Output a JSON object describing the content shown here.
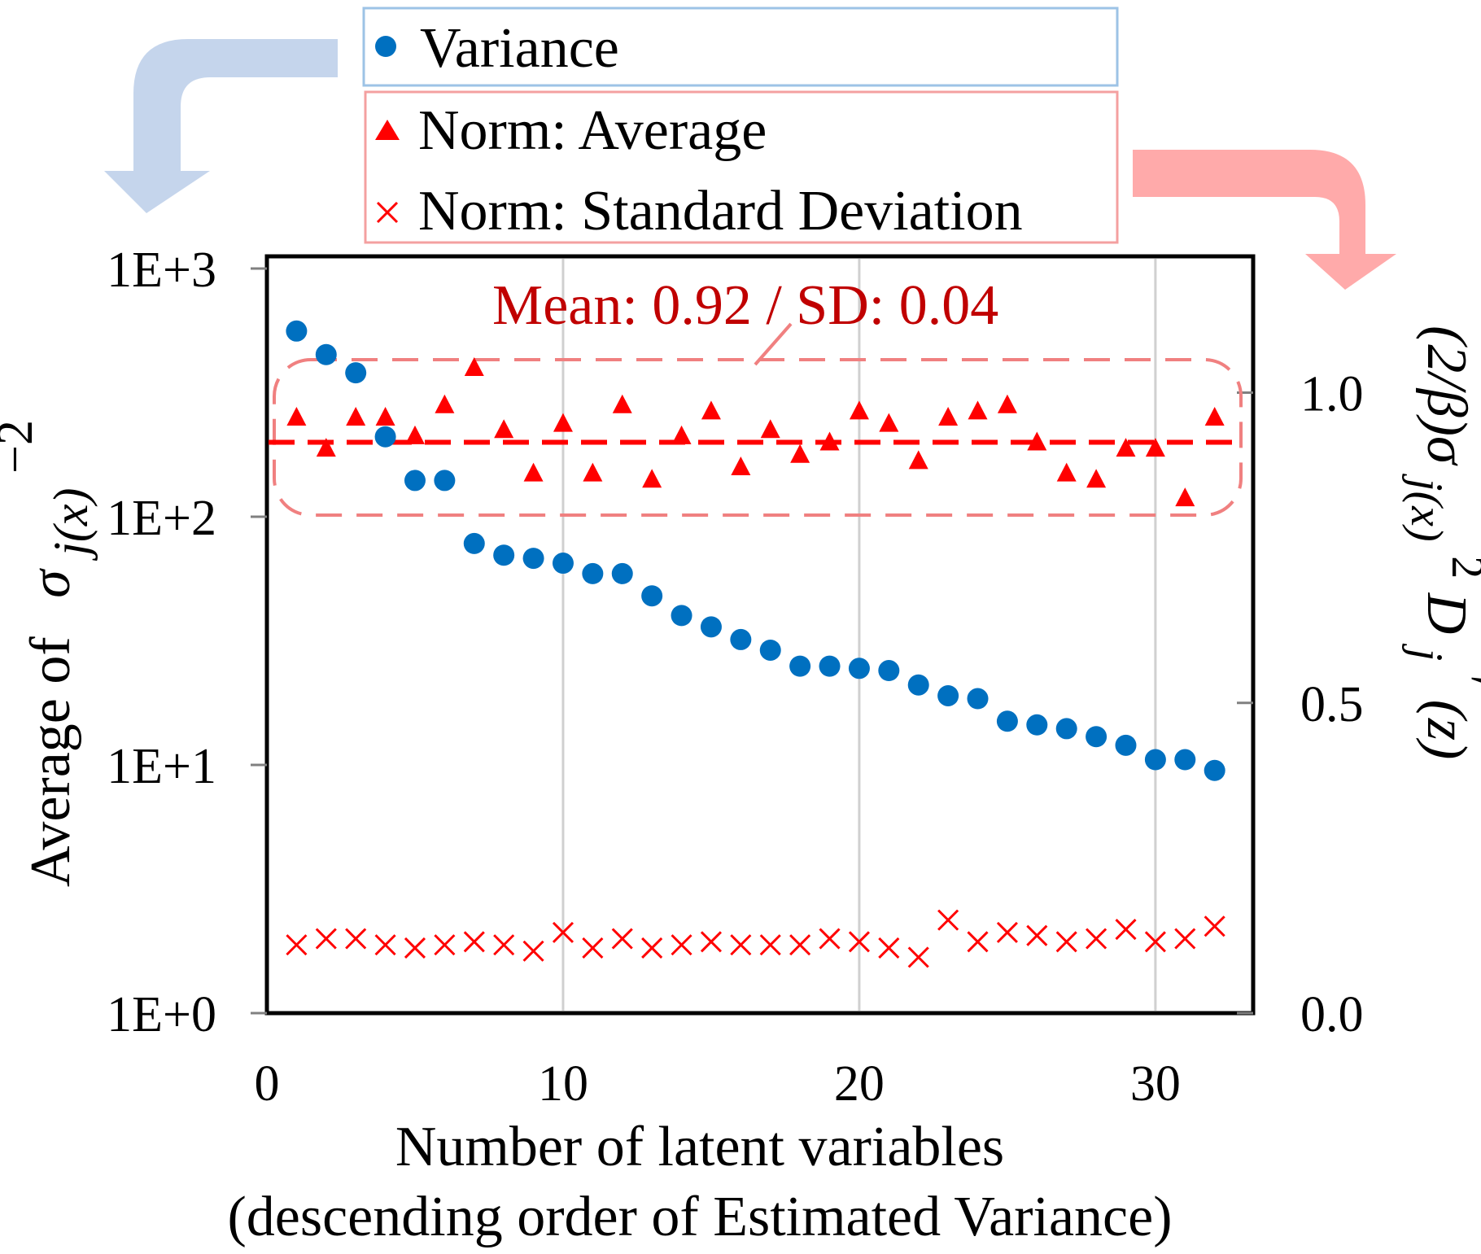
{
  "chart_data": {
    "type": "scatter",
    "x_axis": {
      "label_line1": "Number of latent variables",
      "label_line2": "(descending order of Estimated Variance)",
      "range": [
        0,
        33.3
      ],
      "ticks": [
        0,
        10,
        20,
        30
      ],
      "tick_labels": [
        "0",
        "10",
        "20",
        "30"
      ],
      "gridlines": [
        10,
        20,
        30
      ]
    },
    "y_left": {
      "scale": "log",
      "range": [
        1,
        1000
      ],
      "ticks": [
        1,
        10,
        100,
        1000
      ],
      "tick_labels": [
        "1E+0",
        "1E+1",
        "1E+2",
        "1E+3"
      ],
      "label_prefix": "Average of",
      "label_symbol": "σ",
      "label_subscript": "j(x)",
      "label_superscript": "−2"
    },
    "y_right": {
      "scale": "linear",
      "range": [
        0,
        1.2
      ],
      "ticks": [
        0,
        0.5,
        1.0
      ],
      "tick_labels": [
        "0.0",
        "0.5",
        "1.0"
      ],
      "label_parts": [
        "(2/β)σ",
        "j(x)",
        "2",
        "D",
        "j",
        "′",
        "(z)"
      ]
    },
    "legend": {
      "variance": "Variance",
      "norm_average": "Norm: Average",
      "norm_sd": "Norm: Standard Deviation"
    },
    "annotation": {
      "text": "Mean: 0.92 / SD: 0.04",
      "mean_line_value": 0.92
    },
    "series": [
      {
        "name": "Variance",
        "axis": "left",
        "marker": "circle",
        "color": "#0070C0",
        "x": [
          1,
          2,
          3,
          4,
          5,
          6,
          7,
          8,
          9,
          10,
          11,
          12,
          13,
          14,
          15,
          16,
          17,
          18,
          19,
          20,
          21,
          22,
          23,
          24,
          25,
          26,
          27,
          28,
          29,
          30,
          31,
          32
        ],
        "values": [
          560,
          450,
          380,
          210,
          140,
          140,
          78,
          70,
          68,
          65,
          59,
          59,
          48,
          40,
          36,
          32,
          29,
          25,
          25,
          24.5,
          24,
          21,
          19,
          18.5,
          15,
          14.5,
          14,
          13,
          12,
          10.5,
          10.5,
          9.5
        ]
      },
      {
        "name": "Norm: Average",
        "axis": "right",
        "marker": "triangle",
        "color": "#FF0000",
        "x": [
          1,
          2,
          3,
          4,
          5,
          6,
          7,
          8,
          9,
          10,
          11,
          12,
          13,
          14,
          15,
          16,
          17,
          18,
          19,
          20,
          21,
          22,
          23,
          24,
          25,
          26,
          27,
          28,
          29,
          30,
          31,
          32
        ],
        "values": [
          0.96,
          0.91,
          0.96,
          0.96,
          0.93,
          0.98,
          1.04,
          0.94,
          0.87,
          0.95,
          0.87,
          0.98,
          0.86,
          0.93,
          0.97,
          0.88,
          0.94,
          0.9,
          0.92,
          0.97,
          0.95,
          0.89,
          0.96,
          0.97,
          0.98,
          0.92,
          0.87,
          0.86,
          0.91,
          0.91,
          0.83,
          0.96
        ]
      },
      {
        "name": "Norm: Standard Deviation",
        "axis": "right",
        "marker": "x",
        "color": "#FF0000",
        "x": [
          1,
          2,
          3,
          4,
          5,
          6,
          7,
          8,
          9,
          10,
          11,
          12,
          13,
          14,
          15,
          16,
          17,
          18,
          19,
          20,
          21,
          22,
          23,
          24,
          25,
          26,
          27,
          28,
          29,
          30,
          31,
          32
        ],
        "values": [
          0.11,
          0.12,
          0.12,
          0.11,
          0.105,
          0.11,
          0.115,
          0.11,
          0.1,
          0.13,
          0.105,
          0.12,
          0.105,
          0.11,
          0.115,
          0.11,
          0.11,
          0.11,
          0.12,
          0.115,
          0.105,
          0.09,
          0.15,
          0.115,
          0.13,
          0.125,
          0.115,
          0.12,
          0.135,
          0.115,
          0.12,
          0.14
        ]
      }
    ]
  },
  "colors": {
    "variance": "#0070C0",
    "norm": "#FF0000",
    "annotation": "#C00000",
    "blue_arrow": "#C5D5EC",
    "red_arrow": "#FFAAAA",
    "legend_blue_border": "#9DC3E6",
    "legend_red_border": "#F4A0A0",
    "grid": "#D0D0D0"
  }
}
